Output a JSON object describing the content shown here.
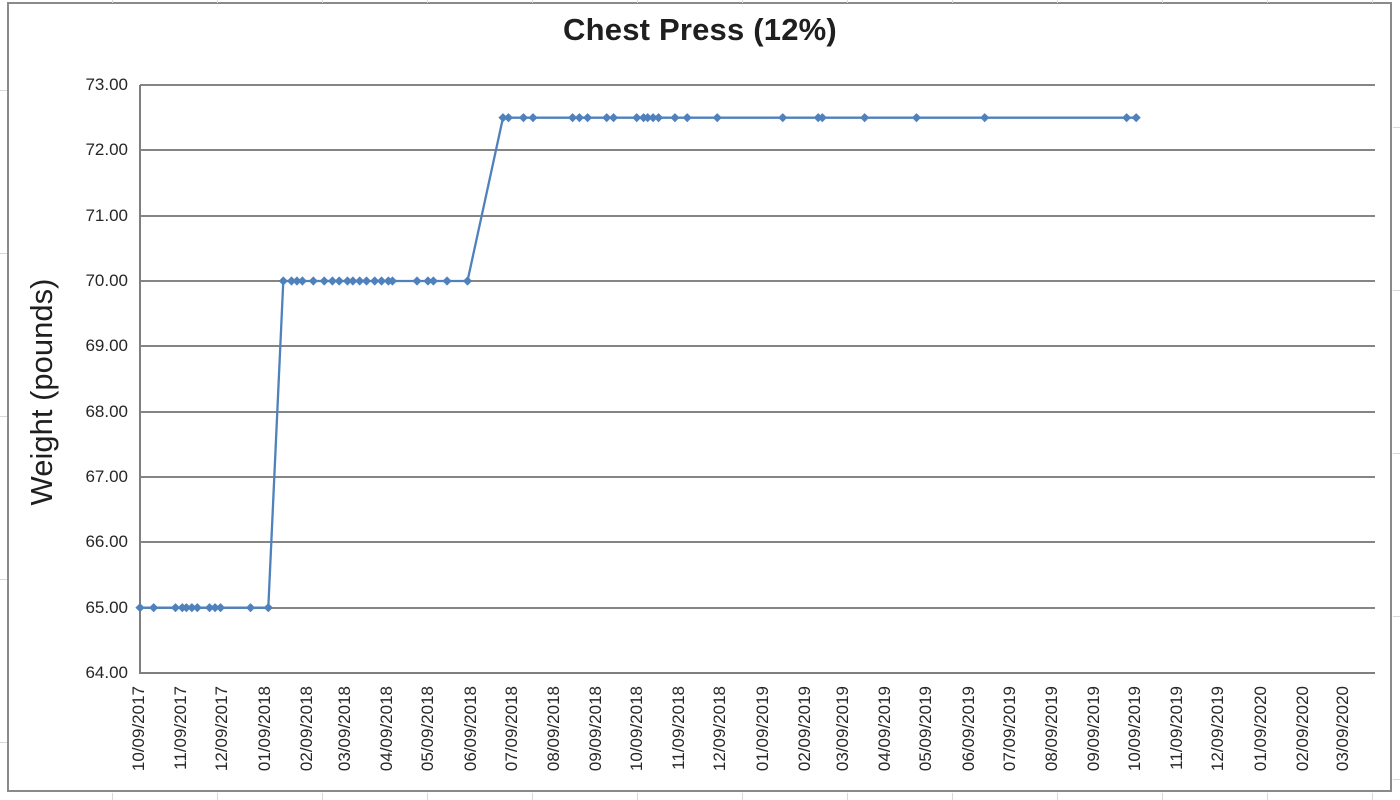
{
  "chart_data": {
    "type": "line",
    "title": "Chest Press (12%)",
    "xlabel": "",
    "ylabel": "Weight (pounds)",
    "ylim": [
      64,
      73
    ],
    "y_tick_step": 1,
    "y_ticks": [
      "73.00",
      "72.00",
      "71.00",
      "70.00",
      "69.00",
      "68.00",
      "67.00",
      "66.00",
      "65.00",
      "64.00"
    ],
    "x_ticks": [
      "10/09/2017",
      "11/09/2017",
      "12/09/2017",
      "01/09/2018",
      "02/09/2018",
      "03/09/2018",
      "04/09/2018",
      "05/09/2018",
      "06/09/2018",
      "07/09/2018",
      "08/09/2018",
      "09/09/2018",
      "10/09/2018",
      "11/09/2018",
      "12/09/2018",
      "01/09/2019",
      "02/09/2019",
      "03/09/2019",
      "04/09/2019",
      "05/09/2019",
      "06/09/2019",
      "07/09/2019",
      "08/09/2019",
      "09/09/2019",
      "10/09/2019",
      "11/09/2019",
      "12/09/2019",
      "01/09/2020",
      "02/09/2020",
      "03/09/2020"
    ],
    "x_axis": {
      "start_date": "10/09/2017",
      "tick_unit": "1 month",
      "total_days": 905
    },
    "grid": "horizontal-major",
    "legend": "none",
    "series": [
      {
        "name": "Weight",
        "color": "#4F81BD",
        "marker": "diamond",
        "points": [
          {
            "date": "10/09/2017",
            "value": 65.0
          },
          {
            "date": "10/19/2017",
            "value": 65.0
          },
          {
            "date": "11/04/2017",
            "value": 65.0
          },
          {
            "date": "11/09/2017",
            "value": 65.0
          },
          {
            "date": "11/12/2017",
            "value": 65.0
          },
          {
            "date": "11/16/2017",
            "value": 65.0
          },
          {
            "date": "11/20/2017",
            "value": 65.0
          },
          {
            "date": "11/29/2017",
            "value": 65.0
          },
          {
            "date": "12/03/2017",
            "value": 65.0
          },
          {
            "date": "12/07/2017",
            "value": 65.0
          },
          {
            "date": "12/29/2017",
            "value": 65.0
          },
          {
            "date": "01/11/2018",
            "value": 65.0
          },
          {
            "date": "01/22/2018",
            "value": 70.0
          },
          {
            "date": "01/28/2018",
            "value": 70.0
          },
          {
            "date": "02/01/2018",
            "value": 70.0
          },
          {
            "date": "02/05/2018",
            "value": 70.0
          },
          {
            "date": "02/13/2018",
            "value": 70.0
          },
          {
            "date": "02/21/2018",
            "value": 70.0
          },
          {
            "date": "02/27/2018",
            "value": 70.0
          },
          {
            "date": "03/04/2018",
            "value": 70.0
          },
          {
            "date": "03/10/2018",
            "value": 70.0
          },
          {
            "date": "03/14/2018",
            "value": 70.0
          },
          {
            "date": "03/19/2018",
            "value": 70.0
          },
          {
            "date": "03/24/2018",
            "value": 70.0
          },
          {
            "date": "03/30/2018",
            "value": 70.0
          },
          {
            "date": "04/04/2018",
            "value": 70.0
          },
          {
            "date": "04/09/2018",
            "value": 70.0
          },
          {
            "date": "04/12/2018",
            "value": 70.0
          },
          {
            "date": "04/30/2018",
            "value": 70.0
          },
          {
            "date": "05/08/2018",
            "value": 70.0
          },
          {
            "date": "05/12/2018",
            "value": 70.0
          },
          {
            "date": "05/22/2018",
            "value": 70.0
          },
          {
            "date": "06/06/2018",
            "value": 70.0
          },
          {
            "date": "07/02/2018",
            "value": 72.5
          },
          {
            "date": "07/06/2018",
            "value": 72.5
          },
          {
            "date": "07/17/2018",
            "value": 72.5
          },
          {
            "date": "07/24/2018",
            "value": 72.5
          },
          {
            "date": "08/22/2018",
            "value": 72.5
          },
          {
            "date": "08/27/2018",
            "value": 72.5
          },
          {
            "date": "09/02/2018",
            "value": 72.5
          },
          {
            "date": "09/16/2018",
            "value": 72.5
          },
          {
            "date": "09/21/2018",
            "value": 72.5
          },
          {
            "date": "10/08/2018",
            "value": 72.5
          },
          {
            "date": "10/13/2018",
            "value": 72.5
          },
          {
            "date": "10/16/2018",
            "value": 72.5
          },
          {
            "date": "10/20/2018",
            "value": 72.5
          },
          {
            "date": "10/24/2018",
            "value": 72.5
          },
          {
            "date": "11/05/2018",
            "value": 72.5
          },
          {
            "date": "11/14/2018",
            "value": 72.5
          },
          {
            "date": "12/06/2018",
            "value": 72.5
          },
          {
            "date": "01/23/2019",
            "value": 72.5
          },
          {
            "date": "02/18/2019",
            "value": 72.5
          },
          {
            "date": "02/21/2019",
            "value": 72.5
          },
          {
            "date": "03/24/2019",
            "value": 72.5
          },
          {
            "date": "05/01/2019",
            "value": 72.5
          },
          {
            "date": "06/20/2019",
            "value": 72.5
          },
          {
            "date": "10/02/2019",
            "value": 72.5
          },
          {
            "date": "10/09/2019",
            "value": 72.5
          }
        ]
      }
    ]
  },
  "colors": {
    "series_line": "#4F81BD",
    "gridline": "#858585",
    "axis": "#7f7f7f",
    "text": "#262626",
    "chart_border": "#8a8a8a",
    "spreadsheet_gridline": "#d9d9d9"
  }
}
